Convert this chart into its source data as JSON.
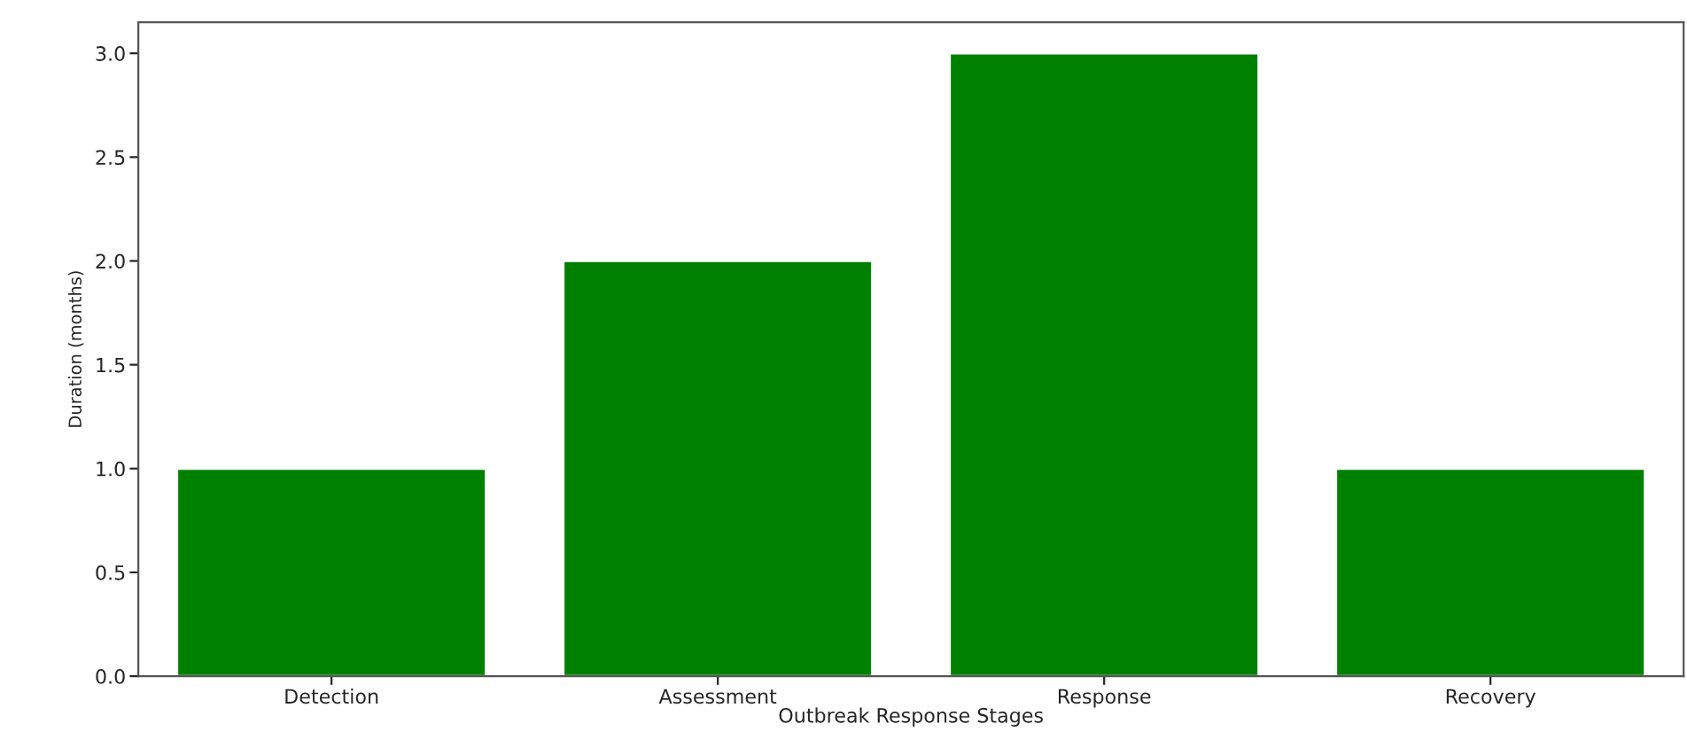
{
  "chart_data": {
    "type": "bar",
    "xlabel": "Outbreak Response Stages",
    "ylabel": "Duration (months)",
    "categories": [
      "Detection",
      "Assessment",
      "Response",
      "Recovery"
    ],
    "values": [
      1,
      2,
      3,
      1
    ],
    "color": "#008000",
    "ylim": [
      0,
      3.15
    ],
    "yticks": [
      {
        "value": 0,
        "label": "0.0"
      },
      {
        "value": 0.5,
        "label": "0.5"
      },
      {
        "value": 1,
        "label": "1.0"
      },
      {
        "value": 1.5,
        "label": "1.5"
      },
      {
        "value": 2,
        "label": "2.0"
      },
      {
        "value": 2.5,
        "label": "2.5"
      },
      {
        "value": 3,
        "label": "3.0"
      }
    ],
    "grid": false
  }
}
